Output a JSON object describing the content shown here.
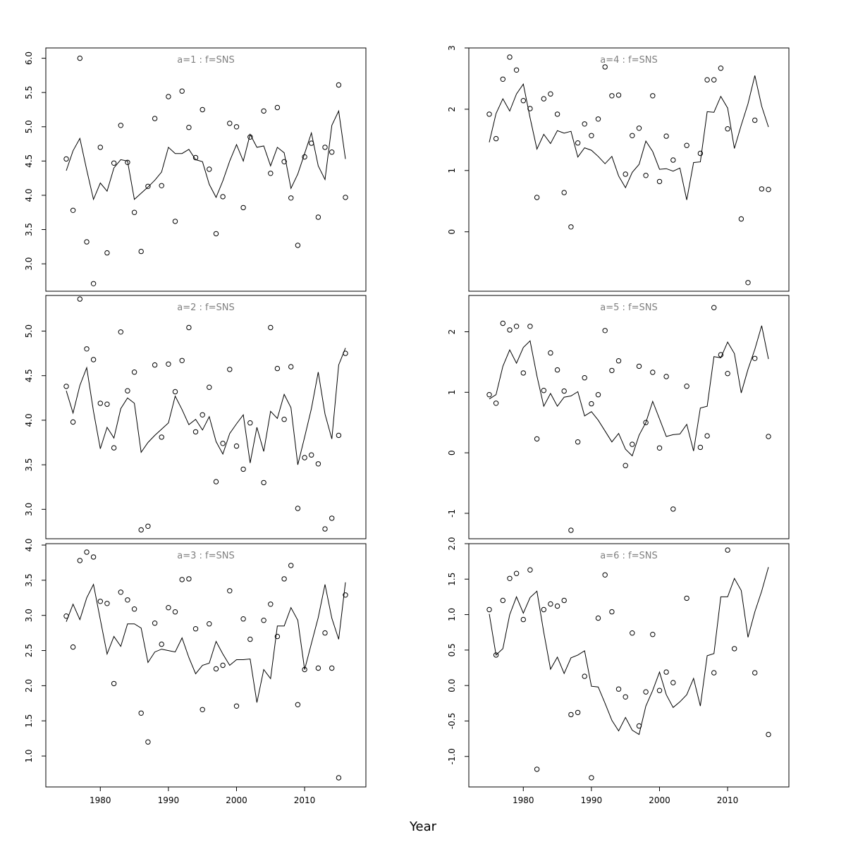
{
  "figure": {
    "xlabel": "Year"
  },
  "chart_data": [
    {
      "type": "line",
      "title": "a=1 : f=SNS",
      "x": [
        1975,
        1976,
        1977,
        1978,
        1979,
        1980,
        1981,
        1982,
        1983,
        1984,
        1985,
        1986,
        1987,
        1988,
        1989,
        1990,
        1991,
        1992,
        1993,
        1994,
        1995,
        1996,
        1997,
        1998,
        1999,
        2000,
        2001,
        2002,
        2003,
        2004,
        2005,
        2006,
        2007,
        2008,
        2009,
        2010,
        2011,
        2012,
        2013,
        2014,
        2015,
        2016
      ],
      "xlim": [
        1972,
        2019
      ],
      "ylim": [
        2.6,
        6.15
      ],
      "yticks": [
        3.0,
        3.5,
        4.0,
        4.5,
        5.0,
        5.5,
        6.0
      ],
      "yticklabels": [
        "3.0",
        "3.5",
        "4.0",
        "4.5",
        "5.0",
        "5.5",
        "6.0"
      ],
      "show_x_ticks": false,
      "series": [
        {
          "type": "line",
          "values": [
            4.36,
            4.65,
            4.83,
            4.37,
            3.94,
            4.18,
            4.06,
            4.4,
            4.52,
            4.5,
            3.94,
            4.03,
            4.12,
            4.22,
            4.34,
            4.7,
            4.61,
            4.61,
            4.67,
            4.52,
            4.49,
            4.16,
            3.97,
            4.21,
            4.5,
            4.74,
            4.5,
            4.89,
            4.7,
            4.72,
            4.43,
            4.7,
            4.62,
            4.1,
            4.31,
            4.61,
            4.91,
            4.43,
            4.23,
            5.02,
            5.23,
            4.53
          ]
        },
        {
          "type": "scatter",
          "values": [
            4.53,
            3.78,
            6.0,
            3.32,
            2.71,
            4.7,
            3.16,
            4.47,
            5.02,
            4.48,
            3.75,
            3.18,
            4.13,
            5.12,
            4.14,
            5.44,
            3.62,
            5.52,
            4.99,
            4.55,
            5.25,
            4.38,
            3.44,
            3.98,
            5.05,
            5.0,
            3.82,
            4.85,
            null,
            5.23,
            4.32,
            5.28,
            4.49,
            3.96,
            3.27,
            4.56,
            4.76,
            3.68,
            4.7,
            4.63,
            5.61,
            3.97
          ]
        }
      ]
    },
    {
      "type": "line",
      "title": "a=4 : f=SNS",
      "x": [
        1975,
        1976,
        1977,
        1978,
        1979,
        1980,
        1981,
        1982,
        1983,
        1984,
        1985,
        1986,
        1987,
        1988,
        1989,
        1990,
        1991,
        1992,
        1993,
        1994,
        1995,
        1996,
        1997,
        1998,
        1999,
        2000,
        2001,
        2002,
        2003,
        2004,
        2005,
        2006,
        2007,
        2008,
        2009,
        2010,
        2011,
        2012,
        2013,
        2014,
        2015,
        2016
      ],
      "xlim": [
        1972,
        2019
      ],
      "ylim": [
        -0.97,
        3.0
      ],
      "yticks": [
        0,
        1,
        2,
        3
      ],
      "yticklabels": [
        "0",
        "1",
        "2",
        "3"
      ],
      "show_x_ticks": false,
      "series": [
        {
          "type": "line",
          "values": [
            1.46,
            1.93,
            2.17,
            1.97,
            2.25,
            2.41,
            1.86,
            1.35,
            1.59,
            1.44,
            1.65,
            1.61,
            1.64,
            1.22,
            1.37,
            1.33,
            1.23,
            1.11,
            1.23,
            0.91,
            0.72,
            0.97,
            1.1,
            1.48,
            1.31,
            1.02,
            1.03,
            0.99,
            1.04,
            0.52,
            1.13,
            1.14,
            1.96,
            1.95,
            2.21,
            2.02,
            1.36,
            1.74,
            2.09,
            2.55,
            2.05,
            1.71
          ]
        },
        {
          "type": "scatter",
          "values": [
            1.92,
            1.52,
            2.49,
            2.85,
            2.64,
            2.14,
            2.01,
            0.56,
            2.17,
            2.25,
            1.92,
            0.64,
            0.08,
            1.45,
            1.76,
            1.57,
            1.84,
            2.69,
            2.22,
            2.23,
            0.94,
            1.57,
            1.69,
            0.92,
            2.22,
            0.82,
            1.56,
            1.17,
            null,
            1.41,
            null,
            1.28,
            2.48,
            2.48,
            2.67,
            1.68,
            null,
            0.21,
            -0.83,
            1.82,
            0.7,
            0.69
          ]
        }
      ]
    },
    {
      "type": "line",
      "title": "a=2 : f=SNS",
      "x": [
        1975,
        1976,
        1977,
        1978,
        1979,
        1980,
        1981,
        1982,
        1983,
        1984,
        1985,
        1986,
        1987,
        1988,
        1989,
        1990,
        1991,
        1992,
        1993,
        1994,
        1995,
        1996,
        1997,
        1998,
        1999,
        2000,
        2001,
        2002,
        2003,
        2004,
        2005,
        2006,
        2007,
        2008,
        2009,
        2010,
        2011,
        2012,
        2013,
        2014,
        2015,
        2016
      ],
      "xlim": [
        1972,
        2019
      ],
      "ylim": [
        2.67,
        5.4
      ],
      "yticks": [
        3.0,
        3.5,
        4.0,
        4.5,
        5.0
      ],
      "yticklabels": [
        "3.0",
        "3.5",
        "4.0",
        "4.5",
        "5.0"
      ],
      "show_x_ticks": false,
      "series": [
        {
          "type": "line",
          "values": [
            4.33,
            4.08,
            4.39,
            4.59,
            4.1,
            3.68,
            3.92,
            3.8,
            4.13,
            4.25,
            4.19,
            3.64,
            3.75,
            3.83,
            3.9,
            3.97,
            4.27,
            4.12,
            3.95,
            4.01,
            3.89,
            4.04,
            3.76,
            3.62,
            3.85,
            3.96,
            4.06,
            3.52,
            3.92,
            3.65,
            4.1,
            4.02,
            4.29,
            4.14,
            3.5,
            3.81,
            4.13,
            4.54,
            4.07,
            3.79,
            4.62,
            4.81
          ]
        },
        {
          "type": "scatter",
          "values": [
            4.38,
            3.98,
            5.36,
            4.8,
            4.68,
            4.19,
            4.18,
            3.69,
            4.99,
            4.33,
            4.54,
            2.77,
            2.81,
            4.62,
            3.81,
            4.63,
            4.32,
            4.67,
            5.04,
            3.87,
            4.06,
            4.37,
            3.31,
            3.74,
            4.57,
            3.71,
            3.45,
            3.97,
            null,
            3.3,
            5.04,
            4.58,
            4.01,
            4.6,
            3.01,
            3.58,
            3.61,
            3.51,
            2.78,
            2.9,
            3.83,
            4.75
          ]
        }
      ]
    },
    {
      "type": "line",
      "title": "a=5 : f=SNS",
      "x": [
        1975,
        1976,
        1977,
        1978,
        1979,
        1980,
        1981,
        1982,
        1983,
        1984,
        1985,
        1986,
        1987,
        1988,
        1989,
        1990,
        1991,
        1992,
        1993,
        1994,
        1995,
        1996,
        1997,
        1998,
        1999,
        2000,
        2001,
        2002,
        2003,
        2004,
        2005,
        2006,
        2007,
        2008,
        2009,
        2010,
        2011,
        2012,
        2013,
        2014,
        2015,
        2016
      ],
      "xlim": [
        1972,
        2019
      ],
      "ylim": [
        -1.42,
        2.6
      ],
      "yticks": [
        -1,
        0,
        1,
        2
      ],
      "yticklabels": [
        "-1",
        "0",
        "1",
        "2"
      ],
      "show_x_ticks": false,
      "series": [
        {
          "type": "line",
          "values": [
            0.89,
            0.96,
            1.43,
            1.7,
            1.48,
            1.74,
            1.85,
            1.27,
            0.77,
            0.98,
            0.77,
            0.92,
            0.94,
            1.01,
            0.61,
            0.68,
            0.54,
            0.36,
            0.18,
            0.32,
            0.06,
            -0.05,
            0.29,
            0.5,
            0.85,
            0.56,
            0.27,
            0.3,
            0.31,
            0.47,
            0.03,
            0.74,
            0.77,
            1.59,
            1.57,
            1.83,
            1.64,
            0.99,
            1.38,
            1.71,
            2.1,
            1.55
          ]
        },
        {
          "type": "scatter",
          "values": [
            0.96,
            0.82,
            2.14,
            2.03,
            2.09,
            1.32,
            2.09,
            0.23,
            1.03,
            1.65,
            1.37,
            1.02,
            -1.28,
            0.18,
            1.24,
            0.81,
            0.96,
            2.02,
            1.36,
            1.52,
            -0.21,
            0.14,
            1.43,
            0.5,
            1.33,
            0.08,
            1.26,
            -0.93,
            null,
            1.1,
            null,
            0.09,
            0.28,
            2.4,
            1.62,
            1.31,
            null,
            null,
            null,
            1.56,
            null,
            0.27
          ]
        }
      ]
    },
    {
      "type": "line",
      "title": "a=3 : f=SNS",
      "x": [
        1975,
        1976,
        1977,
        1978,
        1979,
        1980,
        1981,
        1982,
        1983,
        1984,
        1985,
        1986,
        1987,
        1988,
        1989,
        1990,
        1991,
        1992,
        1993,
        1994,
        1995,
        1996,
        1997,
        1998,
        1999,
        2000,
        2001,
        2002,
        2003,
        2004,
        2005,
        2006,
        2007,
        2008,
        2009,
        2010,
        2011,
        2012,
        2013,
        2014,
        2015,
        2016
      ],
      "xlim": [
        1972,
        2019
      ],
      "ylim": [
        0.56,
        4.02
      ],
      "yticks": [
        1.0,
        1.5,
        2.0,
        2.5,
        3.0,
        3.5,
        4.0
      ],
      "yticklabels": [
        "1.0",
        "1.5",
        "2.0",
        "2.5",
        "3.0",
        "3.5",
        "4.0"
      ],
      "show_x_ticks": true,
      "xticks": [
        1980,
        1990,
        2000,
        2010
      ],
      "xticklabels": [
        "1980",
        "1990",
        "2000",
        "2010"
      ],
      "series": [
        {
          "type": "line",
          "values": [
            2.91,
            3.16,
            2.94,
            3.25,
            3.44,
            2.94,
            2.45,
            2.7,
            2.56,
            2.88,
            2.88,
            2.82,
            2.33,
            2.48,
            2.52,
            2.5,
            2.48,
            2.68,
            2.4,
            2.17,
            2.29,
            2.32,
            2.63,
            2.45,
            2.29,
            2.37,
            2.37,
            2.38,
            1.76,
            2.23,
            2.1,
            2.85,
            2.85,
            3.11,
            2.93,
            2.23,
            2.6,
            2.97,
            3.44,
            2.96,
            2.66,
            3.47
          ]
        },
        {
          "type": "scatter",
          "values": [
            2.99,
            2.55,
            3.78,
            3.9,
            3.83,
            3.2,
            3.17,
            2.03,
            3.33,
            3.22,
            3.09,
            1.61,
            1.2,
            2.89,
            2.59,
            3.11,
            3.05,
            3.51,
            3.52,
            2.81,
            1.66,
            2.88,
            2.24,
            2.29,
            3.35,
            1.71,
            2.95,
            2.66,
            null,
            2.93,
            3.16,
            2.7,
            3.52,
            3.71,
            1.73,
            2.23,
            null,
            2.25,
            2.75,
            2.25,
            0.69,
            3.29
          ]
        }
      ]
    },
    {
      "type": "line",
      "title": "a=6 : f=SNS",
      "x": [
        1975,
        1976,
        1977,
        1978,
        1979,
        1980,
        1981,
        1982,
        1983,
        1984,
        1985,
        1986,
        1987,
        1988,
        1989,
        1990,
        1991,
        1992,
        1993,
        1994,
        1995,
        1996,
        1997,
        1998,
        1999,
        2000,
        2001,
        2002,
        2003,
        2004,
        2005,
        2006,
        2007,
        2008,
        2009,
        2010,
        2011,
        2012,
        2013,
        2014,
        2015,
        2016
      ],
      "xlim": [
        1972,
        2019
      ],
      "ylim": [
        -1.43,
        2.0
      ],
      "yticks": [
        -1.0,
        -0.5,
        0.0,
        0.5,
        1.0,
        1.5,
        2.0
      ],
      "yticklabels": [
        "-1.0",
        "-0.5",
        "0.0",
        "0.5",
        "1.0",
        "1.5",
        "2.0"
      ],
      "show_x_ticks": true,
      "xticks": [
        1980,
        1990,
        2000,
        2010
      ],
      "xticklabels": [
        "1980",
        "1990",
        "2000",
        "2010"
      ],
      "series": [
        {
          "type": "line",
          "values": [
            1.01,
            0.43,
            0.52,
            1.0,
            1.25,
            1.02,
            1.24,
            1.33,
            0.75,
            0.23,
            0.4,
            0.17,
            0.39,
            0.43,
            0.49,
            -0.01,
            -0.02,
            -0.25,
            -0.49,
            -0.64,
            -0.45,
            -0.63,
            -0.69,
            -0.29,
            -0.07,
            0.19,
            -0.13,
            -0.31,
            -0.23,
            -0.13,
            0.1,
            -0.29,
            0.42,
            0.45,
            1.25,
            1.25,
            1.51,
            1.34,
            0.68,
            1.04,
            1.33,
            1.67
          ]
        },
        {
          "type": "scatter",
          "values": [
            1.07,
            0.43,
            1.2,
            1.51,
            1.58,
            0.93,
            1.63,
            -1.18,
            1.07,
            1.15,
            1.12,
            1.2,
            -0.41,
            -0.38,
            0.13,
            -1.3,
            0.95,
            1.56,
            1.04,
            -0.05,
            -0.16,
            0.74,
            -0.57,
            -0.09,
            0.72,
            -0.07,
            0.19,
            0.04,
            null,
            1.23,
            null,
            null,
            null,
            0.18,
            null,
            1.91,
            0.52,
            null,
            null,
            0.18,
            null,
            -0.69
          ]
        }
      ]
    }
  ]
}
